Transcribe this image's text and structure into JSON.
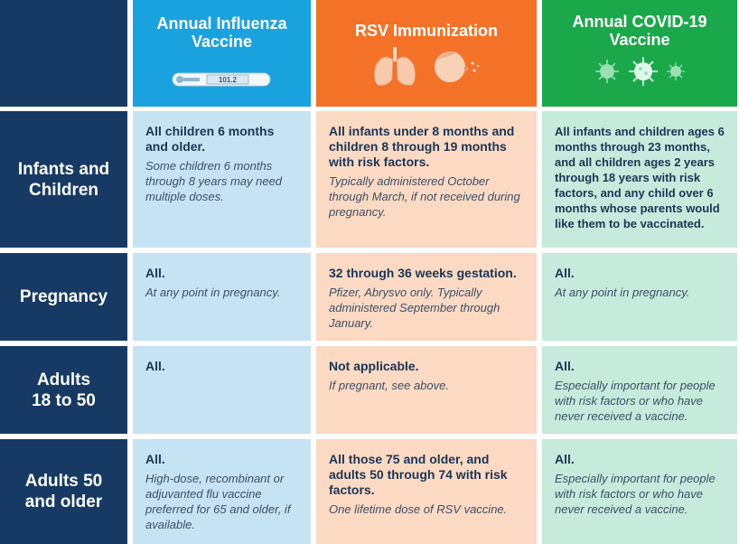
{
  "header": {
    "flu": {
      "title": "Annual Influenza Vaccine",
      "thermometer_reading": "101.2",
      "icon": "thermometer-icon",
      "color": "#1aa2de"
    },
    "rsv": {
      "title": "RSV Immunization",
      "icons": [
        "lungs-icon",
        "child-cough-icon"
      ],
      "color": "#f37228"
    },
    "covid": {
      "title": "Annual COVID-19 Vaccine",
      "icon": "virus-icon",
      "color": "#1ba84a"
    }
  },
  "rows": [
    {
      "label": "Infants and Children",
      "flu": {
        "main": "All children 6 months and older.",
        "note": "Some children 6 months through 8 years may need multiple doses."
      },
      "rsv": {
        "main": "All infants under 8 months and children 8 through 19 months with risk factors.",
        "note": "Typically administered October through March, if not received during pregnancy."
      },
      "covid": {
        "main": "All infants and children ages 6 months through 23 months, and all children ages 2 years through 18 years with risk factors, and any child over 6 months whose parents would like them to be vaccinated.",
        "note": ""
      }
    },
    {
      "label": "Pregnancy",
      "flu": {
        "main": "All.",
        "note": "At any point in pregnancy."
      },
      "rsv": {
        "main": "32 through 36 weeks gestation.",
        "note": "Pfizer, Abrysvo only. Typically administered September through January."
      },
      "covid": {
        "main": "All.",
        "note": "At any point in pregnancy."
      }
    },
    {
      "label": "Adults 18 to 50",
      "flu": {
        "main": "All.",
        "note": ""
      },
      "rsv": {
        "main": "Not applicable.",
        "note": "If pregnant, see above."
      },
      "covid": {
        "main": "All.",
        "note": "Especially important for people with risk factors or who have never received a vaccine."
      }
    },
    {
      "label": "Adults 50 and older",
      "flu": {
        "main": "All.",
        "note": "High-dose, recombinant or adjuvanted flu vaccine preferred for 65 and older, if available."
      },
      "rsv": {
        "main": "All those 75 and older, and adults 50 through 74 with risk factors.",
        "note": "One lifetime dose of RSV vaccine."
      },
      "covid": {
        "main": "All.",
        "note": "Especially important for people with risk factors or who have never received a vaccine."
      }
    }
  ],
  "colors": {
    "row_header": "#163a63",
    "flu_cell": "#c6e3f3",
    "rsv_cell": "#fbd9c3",
    "covid_cell": "#c6eadb",
    "text": "#1b3556"
  }
}
